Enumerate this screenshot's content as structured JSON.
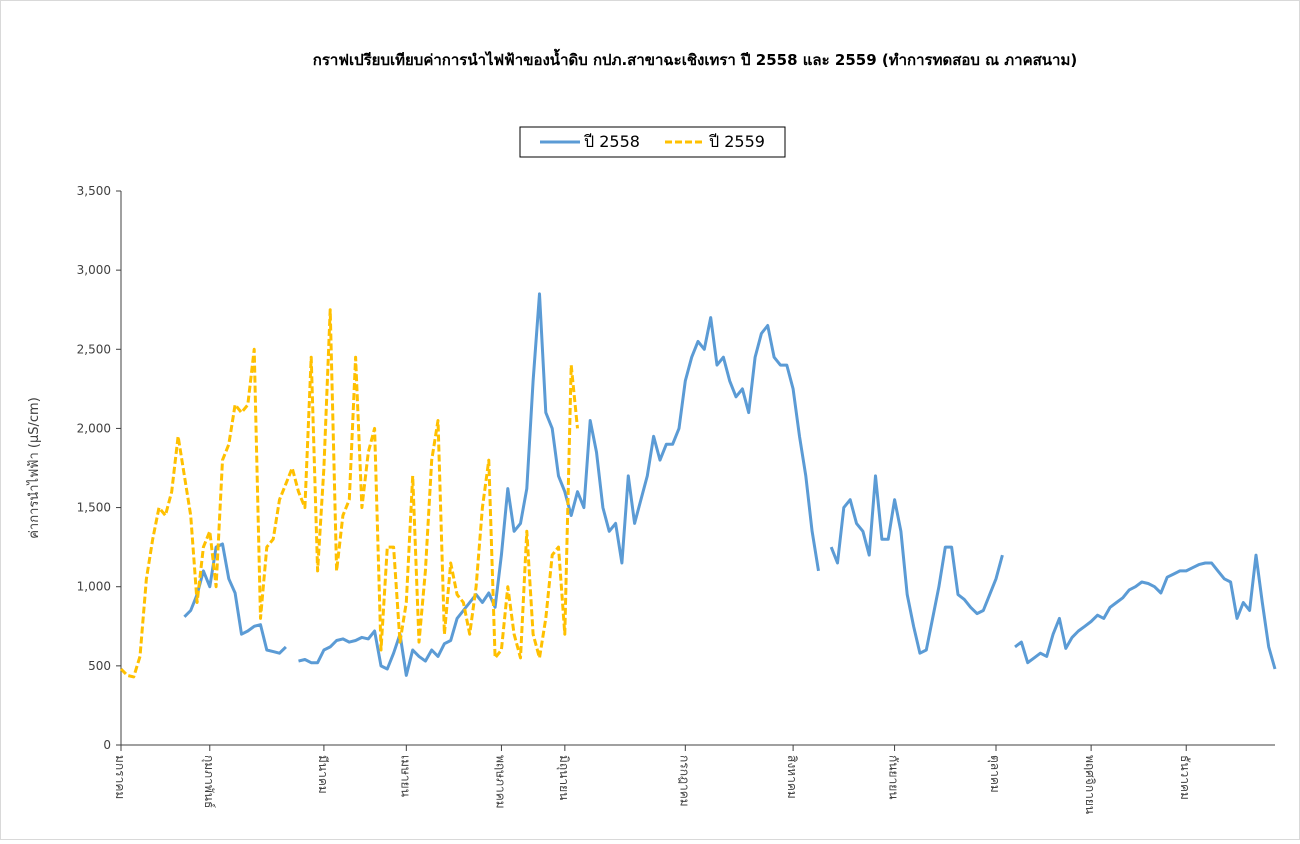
{
  "chart_data": {
    "type": "line",
    "title": "กราฟเปรียบเทียบค่าการนำไฟฟ้าของน้ำดิบ กปภ.สาขาฉะเชิงเทรา  ปี 2558 และ 2559 (ทำการทดสอบ ณ ภาคสนาม)",
    "y_label": "ค่าการนำไฟฟ้า  (µS/cm)",
    "categories": [
      "มกราคม",
      null,
      null,
      null,
      null,
      null,
      null,
      null,
      null,
      null,
      null,
      null,
      null,
      null,
      "กุมภาพันธ์",
      null,
      null,
      null,
      null,
      null,
      null,
      null,
      null,
      null,
      null,
      null,
      null,
      null,
      null,
      null,
      null,
      null,
      "มีนาคม",
      null,
      null,
      null,
      null,
      null,
      null,
      null,
      null,
      null,
      null,
      null,
      null,
      "เมษายน",
      null,
      null,
      null,
      null,
      null,
      null,
      null,
      null,
      null,
      null,
      null,
      null,
      null,
      null,
      "พฤษภาคม",
      null,
      null,
      null,
      null,
      null,
      null,
      null,
      null,
      null,
      "มิถุนายน",
      null,
      null,
      null,
      null,
      null,
      null,
      null,
      null,
      null,
      null,
      null,
      null,
      null,
      null,
      null,
      null,
      null,
      null,
      "กรกฎาคม",
      null,
      null,
      null,
      null,
      null,
      null,
      null,
      null,
      null,
      null,
      null,
      null,
      null,
      null,
      null,
      null,
      "สิงหาคม",
      null,
      null,
      null,
      null,
      null,
      null,
      null,
      null,
      null,
      null,
      null,
      null,
      null,
      null,
      null,
      "กันยายน",
      null,
      null,
      null,
      null,
      null,
      null,
      null,
      null,
      null,
      null,
      null,
      null,
      null,
      null,
      null,
      "ตุลาคม",
      null,
      null,
      null,
      null,
      null,
      null,
      null,
      null,
      null,
      null,
      null,
      null,
      null,
      null,
      "พฤศจิกายน",
      null,
      null,
      null,
      null,
      null,
      null,
      null,
      null,
      null,
      null,
      null,
      null,
      null,
      null,
      "ธันวาคม",
      null,
      null,
      null,
      null,
      null,
      null,
      null,
      null,
      null,
      null,
      null,
      null,
      null,
      null
    ],
    "series": [
      {
        "name": "ปี 2558",
        "color": "#5b9bd5",
        "dashed": false,
        "values": [
          null,
          null,
          null,
          null,
          null,
          null,
          null,
          null,
          null,
          null,
          810,
          850,
          950,
          1100,
          1000,
          1250,
          1270,
          1050,
          960,
          700,
          720,
          750,
          760,
          600,
          590,
          580,
          620,
          null,
          530,
          540,
          520,
          520,
          600,
          620,
          660,
          670,
          650,
          660,
          680,
          670,
          720,
          500,
          480,
          580,
          700,
          440,
          600,
          560,
          530,
          600,
          560,
          640,
          660,
          800,
          850,
          900,
          950,
          900,
          960,
          870,
          1200,
          1620,
          1350,
          1400,
          1620,
          2300,
          2850,
          2100,
          2000,
          1700,
          1600,
          1450,
          1600,
          1500,
          2050,
          1850,
          1500,
          1350,
          1400,
          1150,
          1700,
          1400,
          1550,
          1700,
          1950,
          1800,
          1900,
          1900,
          2000,
          2300,
          2450,
          2550,
          2500,
          2700,
          2400,
          2450,
          2300,
          2200,
          2250,
          2100,
          2450,
          2600,
          2650,
          2450,
          2400,
          2400,
          2250,
          1950,
          1700,
          1350,
          1100,
          null,
          1250,
          1150,
          1500,
          1550,
          1400,
          1350,
          1200,
          1700,
          1300,
          1300,
          1550,
          1350,
          950,
          750,
          580,
          600,
          800,
          1000,
          1250,
          1250,
          950,
          920,
          870,
          830,
          850,
          950,
          1050,
          1200,
          null,
          620,
          650,
          520,
          550,
          580,
          560,
          700,
          800,
          610,
          680,
          720,
          750,
          780,
          820,
          800,
          870,
          900,
          930,
          980,
          1000,
          1030,
          1020,
          1000,
          960,
          1060,
          1080,
          1100,
          1100,
          1120,
          1140,
          1150,
          1150,
          1100,
          1050,
          1030,
          800,
          900,
          850,
          1200,
          900,
          620,
          480
        ]
      },
      {
        "name": "ปี 2559",
        "color": "#ffc000",
        "dashed": true,
        "values": [
          480,
          440,
          430,
          560,
          1050,
          1300,
          1500,
          1450,
          1600,
          1950,
          1700,
          1450,
          900,
          1250,
          1350,
          1000,
          1800,
          1900,
          2150,
          2100,
          2150,
          2500,
          800,
          1250,
          1300,
          1550,
          1650,
          1750,
          1600,
          1500,
          2450,
          1100,
          1750,
          2750,
          1100,
          1450,
          1550,
          2450,
          1500,
          1850,
          2000,
          600,
          1250,
          1250,
          650,
          900,
          1700,
          650,
          1100,
          1800,
          2050,
          700,
          1150,
          950,
          900,
          700,
          1000,
          1500,
          1800,
          550,
          600,
          1000,
          700,
          550,
          1350,
          700,
          550,
          800,
          1200,
          1250,
          700,
          2400,
          2000,
          null,
          null,
          null,
          null,
          null,
          null,
          null,
          null,
          null,
          null,
          null,
          null,
          null,
          null,
          null,
          null,
          null,
          null,
          null,
          null,
          null,
          null,
          null,
          null,
          null,
          null,
          null,
          null,
          null,
          null,
          null,
          null,
          null,
          null,
          null,
          null,
          null,
          null,
          null,
          null,
          null,
          null,
          null,
          null,
          null,
          null,
          null,
          null,
          null,
          null,
          null,
          null,
          null,
          null,
          null,
          null,
          null,
          null,
          null,
          null,
          null,
          null,
          null,
          null,
          null,
          null,
          null,
          null,
          null,
          null,
          null,
          null,
          null,
          null,
          null,
          null,
          null,
          null,
          null,
          null,
          null,
          null,
          null,
          null,
          null,
          null,
          null,
          null,
          null,
          null,
          null,
          null,
          null,
          null,
          null,
          null,
          null,
          null,
          null,
          null,
          null,
          null,
          null,
          null,
          null,
          null,
          null,
          null,
          null,
          null
        ]
      }
    ],
    "ylim": [
      0,
      3500
    ],
    "yticks": [
      0,
      500,
      {
        "value": 1000,
        "label": "1,000"
      },
      {
        "value": 1500,
        "label": "1,500"
      },
      {
        "value": 2000,
        "label": "2,000"
      },
      {
        "value": 2500,
        "label": "2,500"
      },
      {
        "value": 3000,
        "label": "3,000"
      },
      {
        "value": 3500,
        "label": "3,500"
      }
    ],
    "grid": false,
    "legend": "top"
  }
}
